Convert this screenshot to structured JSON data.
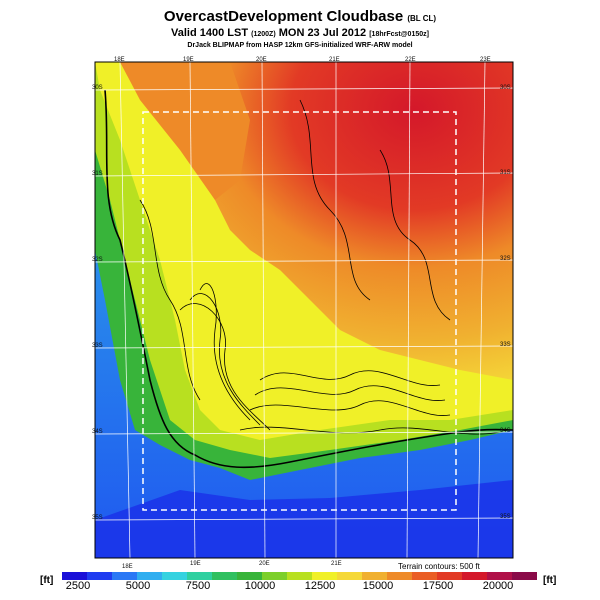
{
  "title": {
    "main": "OvercastDevelopment Cloudbase",
    "main_suffix": "(BL CL)",
    "valid": "Valid 1400 LST",
    "valid_code": "(1200Z)",
    "valid_date": "MON 23 Jul 2012",
    "valid_suffix": "[18hrFcst@0150z]",
    "model": "DrJack BLIPMAP from HASP 12km GFS-initialized WRF-ARW model"
  },
  "legend": {
    "unit_left": "[ft]",
    "unit_right": "[ft]",
    "terrain_note": "Terrain contours: 500 ft",
    "ticks": [
      "2500",
      "5000",
      "7500",
      "10000",
      "12500",
      "15000",
      "17500",
      "20000"
    ],
    "colors": [
      "#1a10d8",
      "#1f3cf0",
      "#2a78f5",
      "#30aef0",
      "#35d2e0",
      "#2fd0a0",
      "#30c060",
      "#38b43a",
      "#7ccf2a",
      "#b8e020",
      "#f0f028",
      "#f5d838",
      "#f0b030",
      "#ee8a28",
      "#ea5e25",
      "#e23a25",
      "#d4182a",
      "#b01048",
      "#8a0a48"
    ]
  },
  "map_data": {
    "lon_labels_top": [
      "18E",
      "19E",
      "20E",
      "21E",
      "22E",
      "23E"
    ],
    "lon_labels_bottom": [
      "18E",
      "19E",
      "20E",
      "21E"
    ],
    "lat_labels": [
      "30S",
      "31S",
      "32S",
      "33S",
      "34S",
      "35S"
    ],
    "field_range_ft": [
      2500,
      21000
    ]
  }
}
